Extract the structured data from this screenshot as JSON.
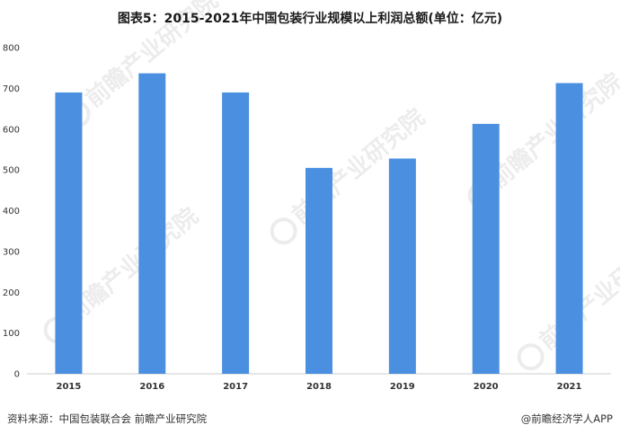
{
  "title": "图表5：2015-2021年中国包装行业规模以上利润总额(单位：亿元)",
  "source_text": "资料来源：中国包装联合会 前瞻产业研究院",
  "credit_text": "@前瞻经济学人APP",
  "watermark_text": "前瞻产业研究院",
  "colors": {
    "bar": "#4a8fe0",
    "axis": "#cccccc",
    "text": "#333333"
  },
  "chart_data": {
    "type": "bar",
    "title": "图表5：2015-2021年中国包装行业规模以上利润总额(单位：亿元)",
    "xlabel": "",
    "ylabel": "",
    "categories": [
      "2015",
      "2016",
      "2017",
      "2018",
      "2019",
      "2020",
      "2021"
    ],
    "values": [
      690,
      737,
      690,
      505,
      528,
      613,
      713
    ],
    "ylim": [
      0,
      800
    ],
    "yticks": [
      0,
      100,
      200,
      300,
      400,
      500,
      600,
      700,
      800
    ],
    "grid": false,
    "legend": "none"
  }
}
